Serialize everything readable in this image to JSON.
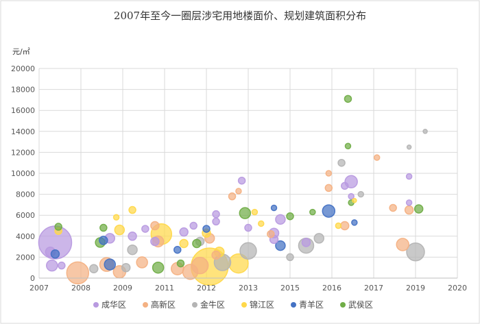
{
  "chart_data": {
    "type": "scatter",
    "subtype": "bubble",
    "title": "2007年至今一圈层涉宅用地楼面价、规划建筑面积分布",
    "ylabel": "元/㎡",
    "xlabel": "",
    "xlim": [
      2007,
      2020
    ],
    "ylim": [
      0,
      20000
    ],
    "x_ticks": [
      "2007",
      "2008",
      "2009",
      "2011",
      "2012",
      "2013",
      "2015",
      "2016",
      "2017",
      "2019",
      "2020"
    ],
    "y_ticks": [
      0,
      2000,
      4000,
      6000,
      8000,
      10000,
      12000,
      14000,
      16000,
      18000,
      20000
    ],
    "grid": true,
    "legend_position": "bottom",
    "series": [
      {
        "name": "成华区",
        "color": "#b89ae0",
        "points": [
          {
            "x": 2007.5,
            "y": 3400,
            "r": 24
          },
          {
            "x": 2007.35,
            "y": 2500,
            "r": 7
          },
          {
            "x": 2007.4,
            "y": 1200,
            "r": 8
          },
          {
            "x": 2007.7,
            "y": 1200,
            "r": 5
          },
          {
            "x": 2009.2,
            "y": 3800,
            "r": 7
          },
          {
            "x": 2009.9,
            "y": 4000,
            "r": 6
          },
          {
            "x": 2010.3,
            "y": 4700,
            "r": 5
          },
          {
            "x": 2010.6,
            "y": 3500,
            "r": 6
          },
          {
            "x": 2011.5,
            "y": 4400,
            "r": 6
          },
          {
            "x": 2011.8,
            "y": 5000,
            "r": 5
          },
          {
            "x": 2012.5,
            "y": 6100,
            "r": 5
          },
          {
            "x": 2012.5,
            "y": 5400,
            "r": 5
          },
          {
            "x": 2013.3,
            "y": 9300,
            "r": 5
          },
          {
            "x": 2013.5,
            "y": 4800,
            "r": 5
          },
          {
            "x": 2014.5,
            "y": 5600,
            "r": 7
          },
          {
            "x": 2014.3,
            "y": 4300,
            "r": 7
          },
          {
            "x": 2014.3,
            "y": 3700,
            "r": 6
          },
          {
            "x": 2015.3,
            "y": 3400,
            "r": 6
          },
          {
            "x": 2016.7,
            "y": 9200,
            "r": 9
          },
          {
            "x": 2016.5,
            "y": 8800,
            "r": 5
          },
          {
            "x": 2016.7,
            "y": 7800,
            "r": 4
          },
          {
            "x": 2018.5,
            "y": 9700,
            "r": 4
          },
          {
            "x": 2018.5,
            "y": 7200,
            "r": 4
          }
        ]
      },
      {
        "name": "高新区",
        "color": "#f4b183",
        "points": [
          {
            "x": 2008.2,
            "y": 500,
            "r": 16
          },
          {
            "x": 2009.1,
            "y": 1300,
            "r": 10
          },
          {
            "x": 2009.5,
            "y": 600,
            "r": 9
          },
          {
            "x": 2010.2,
            "y": 1500,
            "r": 8
          },
          {
            "x": 2010.7,
            "y": 3500,
            "r": 8
          },
          {
            "x": 2010.6,
            "y": 5000,
            "r": 6
          },
          {
            "x": 2011.3,
            "y": 900,
            "r": 9
          },
          {
            "x": 2011.7,
            "y": 600,
            "r": 11
          },
          {
            "x": 2012.0,
            "y": 1200,
            "r": 12
          },
          {
            "x": 2012.3,
            "y": 3800,
            "r": 7
          },
          {
            "x": 2012.5,
            "y": 2200,
            "r": 6
          },
          {
            "x": 2013.0,
            "y": 7800,
            "r": 5
          },
          {
            "x": 2013.2,
            "y": 8300,
            "r": 4
          },
          {
            "x": 2014.2,
            "y": 4200,
            "r": 5
          },
          {
            "x": 2016.0,
            "y": 8600,
            "r": 5
          },
          {
            "x": 2016.0,
            "y": 10000,
            "r": 4
          },
          {
            "x": 2016.5,
            "y": 5000,
            "r": 6
          },
          {
            "x": 2018.0,
            "y": 6700,
            "r": 5
          },
          {
            "x": 2018.3,
            "y": 3200,
            "r": 9
          },
          {
            "x": 2018.5,
            "y": 6500,
            "r": 6
          },
          {
            "x": 2017.5,
            "y": 11500,
            "r": 4
          }
        ]
      },
      {
        "name": "金牛区",
        "color": "#b4b4b4",
        "points": [
          {
            "x": 2008.7,
            "y": 900,
            "r": 6
          },
          {
            "x": 2009.7,
            "y": 1000,
            "r": 6
          },
          {
            "x": 2009.9,
            "y": 2700,
            "r": 7
          },
          {
            "x": 2012.0,
            "y": 3500,
            "r": 6
          },
          {
            "x": 2012.7,
            "y": 1500,
            "r": 12
          },
          {
            "x": 2013.5,
            "y": 2600,
            "r": 12
          },
          {
            "x": 2014.8,
            "y": 2000,
            "r": 5
          },
          {
            "x": 2015.3,
            "y": 3100,
            "r": 11
          },
          {
            "x": 2015.7,
            "y": 3800,
            "r": 7
          },
          {
            "x": 2016.4,
            "y": 11000,
            "r": 5
          },
          {
            "x": 2017.0,
            "y": 8000,
            "r": 4
          },
          {
            "x": 2018.7,
            "y": 2500,
            "r": 13
          },
          {
            "x": 2018.5,
            "y": 12500,
            "r": 3
          },
          {
            "x": 2019.0,
            "y": 14000,
            "r": 3
          }
        ]
      },
      {
        "name": "锦江区",
        "color": "#ffd84a",
        "points": [
          {
            "x": 2007.6,
            "y": 4500,
            "r": 5
          },
          {
            "x": 2009.4,
            "y": 5800,
            "r": 4
          },
          {
            "x": 2009.5,
            "y": 4600,
            "r": 7
          },
          {
            "x": 2009.9,
            "y": 6500,
            "r": 5
          },
          {
            "x": 2010.8,
            "y": 4200,
            "r": 15
          },
          {
            "x": 2011.5,
            "y": 3300,
            "r": 6
          },
          {
            "x": 2012.3,
            "y": 1100,
            "r": 27
          },
          {
            "x": 2012.6,
            "y": 2500,
            "r": 7
          },
          {
            "x": 2012.2,
            "y": 4300,
            "r": 6
          },
          {
            "x": 2013.2,
            "y": 1400,
            "r": 14
          },
          {
            "x": 2013.7,
            "y": 6300,
            "r": 4
          },
          {
            "x": 2013.9,
            "y": 5200,
            "r": 4
          },
          {
            "x": 2016.3,
            "y": 5000,
            "r": 4
          },
          {
            "x": 2016.8,
            "y": 7400,
            "r": 3
          }
        ]
      },
      {
        "name": "青羊区",
        "color": "#4472c4",
        "points": [
          {
            "x": 2007.5,
            "y": 2300,
            "r": 6
          },
          {
            "x": 2009.0,
            "y": 3600,
            "r": 6
          },
          {
            "x": 2009.2,
            "y": 1300,
            "r": 8
          },
          {
            "x": 2011.3,
            "y": 2700,
            "r": 5
          },
          {
            "x": 2012.2,
            "y": 4700,
            "r": 5
          },
          {
            "x": 2014.3,
            "y": 6700,
            "r": 4
          },
          {
            "x": 2014.5,
            "y": 3100,
            "r": 7
          },
          {
            "x": 2016.0,
            "y": 6400,
            "r": 9
          },
          {
            "x": 2016.8,
            "y": 5300,
            "r": 4
          }
        ]
      },
      {
        "name": "武侯区",
        "color": "#70ad47",
        "points": [
          {
            "x": 2007.6,
            "y": 4900,
            "r": 5
          },
          {
            "x": 2008.9,
            "y": 3400,
            "r": 7
          },
          {
            "x": 2009.0,
            "y": 4800,
            "r": 5
          },
          {
            "x": 2010.7,
            "y": 1000,
            "r": 8
          },
          {
            "x": 2011.4,
            "y": 1400,
            "r": 5
          },
          {
            "x": 2011.9,
            "y": 3300,
            "r": 6
          },
          {
            "x": 2013.4,
            "y": 6200,
            "r": 8
          },
          {
            "x": 2014.8,
            "y": 5900,
            "r": 5
          },
          {
            "x": 2015.5,
            "y": 6300,
            "r": 4
          },
          {
            "x": 2016.6,
            "y": 17100,
            "r": 5
          },
          {
            "x": 2016.6,
            "y": 12600,
            "r": 4
          },
          {
            "x": 2016.7,
            "y": 7200,
            "r": 4
          },
          {
            "x": 2018.8,
            "y": 6600,
            "r": 6
          }
        ]
      }
    ]
  }
}
